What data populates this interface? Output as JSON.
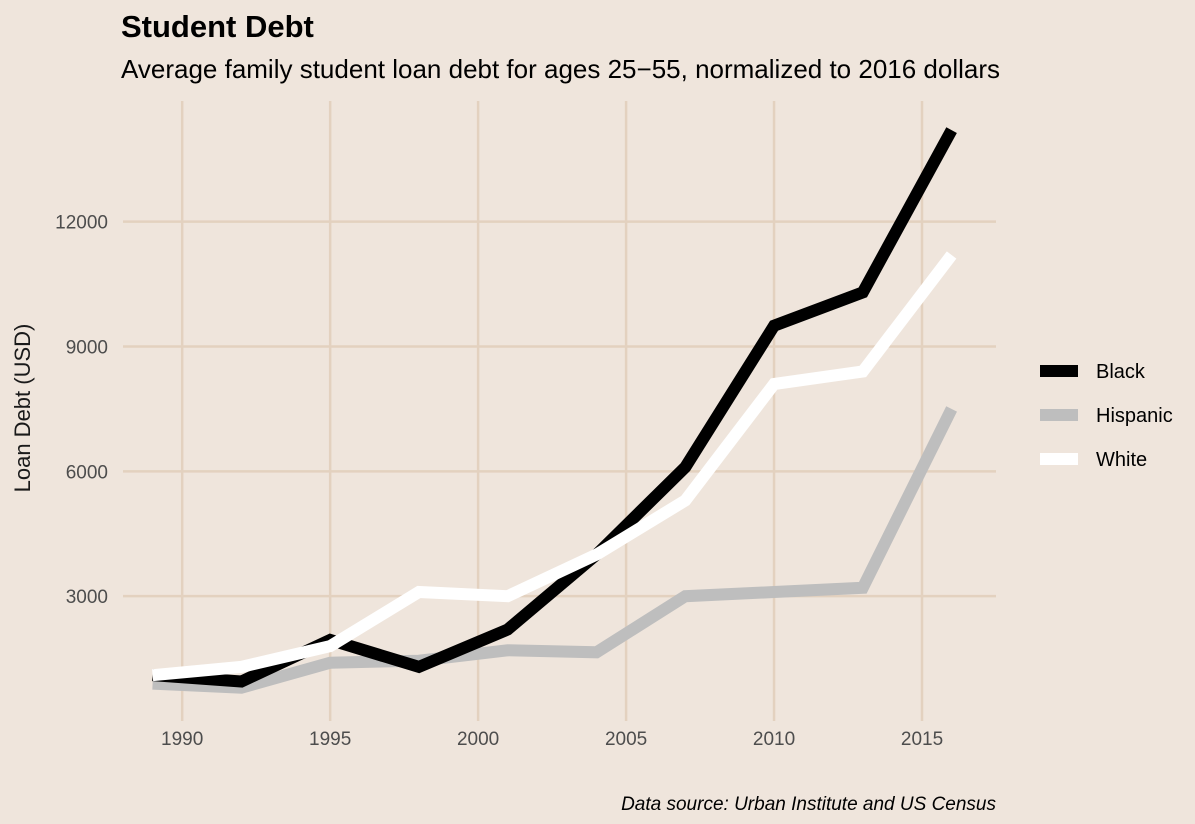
{
  "chart_data": {
    "type": "line",
    "title": "Student Debt",
    "subtitle": "Average family student loan debt for ages 25−55, normalized to 2016 dollars",
    "xlabel": "",
    "ylabel": "Loan Debt (USD)",
    "caption": "Data source:  Urban Institute and US Census",
    "xlim": [
      1988,
      2017.5
    ],
    "ylim": [
      0,
      14900
    ],
    "x_ticks": [
      1990,
      1995,
      2000,
      2005,
      2010,
      2015
    ],
    "y_ticks": [
      3000,
      6000,
      9000,
      12000
    ],
    "grid": true,
    "legend_position": "right",
    "x": [
      1989,
      1992,
      1995,
      1998,
      2001,
      2004,
      2007,
      2010,
      2013,
      2016
    ],
    "series": [
      {
        "name": "Black",
        "color": "#000000",
        "values": [
          1100,
          950,
          1950,
          1300,
          2200,
          4000,
          6100,
          9500,
          10300,
          14200
        ]
      },
      {
        "name": "Hispanic",
        "color": "#bebebe",
        "values": [
          900,
          800,
          1400,
          1450,
          1700,
          1650,
          3000,
          3100,
          3200,
          7500
        ]
      },
      {
        "name": "White",
        "color": "#ffffff",
        "values": [
          1100,
          1300,
          1800,
          3100,
          3000,
          4000,
          5300,
          8100,
          8400,
          11200
        ]
      }
    ]
  }
}
